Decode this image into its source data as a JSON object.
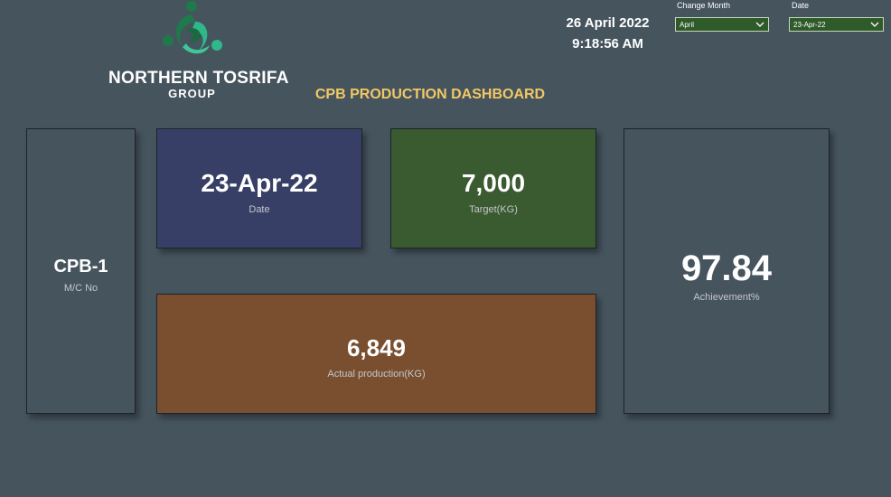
{
  "logo": {
    "name": "NORTHERN TOSRIFA",
    "sub": "GROUP",
    "colors": {
      "dark_green": "#1e7a4a",
      "light_green": "#2fb88a"
    }
  },
  "title": "CPB PRODUCTION DASHBOARD",
  "clock": {
    "date": "26 April 2022",
    "time": "9:18:56 AM"
  },
  "filters": {
    "month": {
      "label": "Change Month",
      "value": "April"
    },
    "date": {
      "label": "Date",
      "value": "23-Apr-22"
    }
  },
  "cards": {
    "machine": {
      "value": "CPB-1",
      "label": "M/C No",
      "color": "#46545e"
    },
    "date": {
      "value": "23-Apr-22",
      "label": "Date",
      "color": "#383f66"
    },
    "target": {
      "value": "7,000",
      "label": "Target(KG)",
      "color": "#3a5a30"
    },
    "achievement": {
      "value": "97.84",
      "label": "Achievement%",
      "color": "#46545e"
    },
    "actual": {
      "value": "6,849",
      "label": "Actual production(KG)",
      "color": "#7a4f30"
    }
  },
  "colors": {
    "background": "#46545e",
    "title": "#f2c864",
    "slicer_fill": "#2f5a2a"
  }
}
